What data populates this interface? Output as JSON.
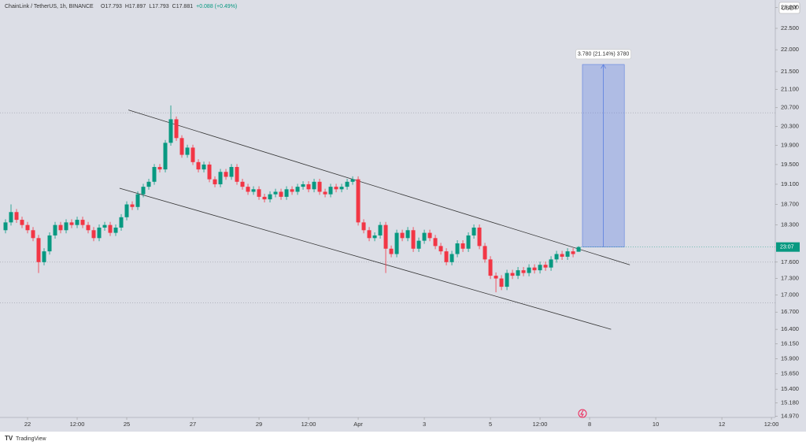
{
  "chart_data": {
    "type": "candlestick",
    "header": {
      "symbol": "ChainLink / TetherUS, 1h, BINANCE",
      "ohlc": [
        "O17.793",
        "H17.897",
        "L17.793",
        "C17.881",
        "+0.088 (+0.49%)"
      ]
    },
    "currency": "USDT",
    "price_tag": "23:07",
    "brand": "TradingView",
    "colors": {
      "up": "#089981",
      "down": "#f23645"
    },
    "log_scale": true,
    "grid": false,
    "ylim": [
      14.95,
      23.18
    ],
    "yticks": [
      {
        "value": 23,
        "label": "23.000"
      },
      {
        "value": 22.5,
        "label": "22.500"
      },
      {
        "value": 22,
        "label": "22.000"
      },
      {
        "value": 21.5,
        "label": "21.500"
      },
      {
        "value": 21.1,
        "label": "21.100"
      },
      {
        "value": 20.7,
        "label": "20.700"
      },
      {
        "value": 20.3,
        "label": "20.300"
      },
      {
        "value": 19.9,
        "label": "19.900"
      },
      {
        "value": 19.5,
        "label": "19.500"
      },
      {
        "value": 19.1,
        "label": "19.100"
      },
      {
        "value": 18.7,
        "label": "18.700"
      },
      {
        "value": 18.3,
        "label": "18.300"
      },
      {
        "value": 17.6,
        "label": "17.600"
      },
      {
        "value": 17.3,
        "label": "17.300"
      },
      {
        "value": 17,
        "label": "17.000"
      },
      {
        "value": 16.7,
        "label": "16.700"
      },
      {
        "value": 16.4,
        "label": "16.400"
      },
      {
        "value": 16.15,
        "label": "16.150"
      },
      {
        "value": 15.9,
        "label": "15.900"
      },
      {
        "value": 15.65,
        "label": "15.650"
      },
      {
        "value": 15.4,
        "label": "15.400"
      },
      {
        "value": 15.18,
        "label": "15.180"
      },
      {
        "value": 14.97,
        "label": "14.970"
      }
    ],
    "xlim": [
      -1,
      139.7
    ],
    "xticks": [
      {
        "value": 4,
        "label": "22"
      },
      {
        "value": 13,
        "label": "12:00"
      },
      {
        "value": 22,
        "label": "25"
      },
      {
        "value": 34,
        "label": "27"
      },
      {
        "value": 46,
        "label": "29"
      },
      {
        "value": 55,
        "label": "12:00"
      },
      {
        "value": 64,
        "label": "Apr"
      },
      {
        "value": 76,
        "label": "3"
      },
      {
        "value": 88,
        "label": "5"
      },
      {
        "value": 97,
        "label": "12:00"
      },
      {
        "value": 106,
        "label": "8"
      },
      {
        "value": 118,
        "label": "10"
      },
      {
        "value": 130,
        "label": "12"
      },
      {
        "value": 139,
        "label": "12:00"
      }
    ],
    "open": [
      18.2,
      18.35,
      18.55,
      18.4,
      18.3,
      18.2,
      18.05,
      17.6,
      17.8,
      18.1,
      18.3,
      18.2,
      18.35,
      18.3,
      18.4,
      18.3,
      18.2,
      18.05,
      18.25,
      18.3,
      18.15,
      18.25,
      18.45,
      18.7,
      18.65,
      18.9,
      19.05,
      19.15,
      19.45,
      19.4,
      19.95,
      20.45,
      20.05,
      19.7,
      19.85,
      19.55,
      19.4,
      19.5,
      19.2,
      19.1,
      19.35,
      19.25,
      19.45,
      19.15,
      19.05,
      18.95,
      19.0,
      18.85,
      18.8,
      18.9,
      18.95,
      18.85,
      19.0,
      18.95,
      19.05,
      19.1,
      19.0,
      19.15,
      18.95,
      18.9,
      19.05,
      19.0,
      19.05,
      19.15,
      19.2,
      18.35,
      18.2,
      18.05,
      18.1,
      18.3,
      17.85,
      17.75,
      18.15,
      18.05,
      18.2,
      17.85,
      18.0,
      18.15,
      18.05,
      17.9,
      17.8,
      17.6,
      17.75,
      17.95,
      17.85,
      18.1,
      18.25,
      17.9,
      17.65,
      17.35,
      17.3,
      17.15,
      17.4,
      17.35,
      17.45,
      17.4,
      17.5,
      17.45,
      17.55,
      17.5,
      17.65,
      17.75,
      17.7,
      17.8,
      17.793
    ],
    "high": [
      18.41,
      18.7,
      18.61,
      18.46,
      18.36,
      18.26,
      18.11,
      17.86,
      18.16,
      18.36,
      18.36,
      18.41,
      18.41,
      18.46,
      18.46,
      18.36,
      18.26,
      18.31,
      18.36,
      18.36,
      18.31,
      18.51,
      18.76,
      18.76,
      18.96,
      19.11,
      19.21,
      19.51,
      19.51,
      20.01,
      20.75,
      20.51,
      20.11,
      19.91,
      19.91,
      19.61,
      19.56,
      19.56,
      19.26,
      19.41,
      19.41,
      19.51,
      19.51,
      19.21,
      19.11,
      19.06,
      19.06,
      18.91,
      18.96,
      19.01,
      19.01,
      19.06,
      19.06,
      19.11,
      19.16,
      19.16,
      19.21,
      19.21,
      19.01,
      19.11,
      19.11,
      19.11,
      19.21,
      19.26,
      19.26,
      18.41,
      18.26,
      18.16,
      18.36,
      18.36,
      17.91,
      18.21,
      18.21,
      18.26,
      18.26,
      18.06,
      18.21,
      18.21,
      18.11,
      17.96,
      17.86,
      17.81,
      18.01,
      18.01,
      18.16,
      18.31,
      18.31,
      17.96,
      17.71,
      17.41,
      17.36,
      17.46,
      17.46,
      17.51,
      17.51,
      17.56,
      17.56,
      17.61,
      17.61,
      17.71,
      17.81,
      17.81,
      17.86,
      17.86,
      17.897
    ],
    "low": [
      18.14,
      18.29,
      18.34,
      18.24,
      18.14,
      17.99,
      17.4,
      17.54,
      17.74,
      18.04,
      18.14,
      18.14,
      18.24,
      18.24,
      18.24,
      18.14,
      17.99,
      17.99,
      18.19,
      18.09,
      18.09,
      18.19,
      18.39,
      18.59,
      18.59,
      18.84,
      18.99,
      19.09,
      19.34,
      19.34,
      19.89,
      19.99,
      19.64,
      19.64,
      19.49,
      19.34,
      19.34,
      19.14,
      19.04,
      19.04,
      19.19,
      19.19,
      19.09,
      18.99,
      18.89,
      18.89,
      18.79,
      18.74,
      18.74,
      18.84,
      18.79,
      18.79,
      18.89,
      18.89,
      18.99,
      18.94,
      18.94,
      18.89,
      18.84,
      18.84,
      18.94,
      18.94,
      18.99,
      19.09,
      18.29,
      18.14,
      17.99,
      17.99,
      18.04,
      17.4,
      17.69,
      17.69,
      17.99,
      17.99,
      17.79,
      17.79,
      17.94,
      17.99,
      17.84,
      17.74,
      17.54,
      17.54,
      17.69,
      17.79,
      17.79,
      18.04,
      17.84,
      17.59,
      17.29,
      17.05,
      17.09,
      17.09,
      17.29,
      17.29,
      17.34,
      17.34,
      17.39,
      17.39,
      17.44,
      17.44,
      17.59,
      17.64,
      17.64,
      17.69,
      17.793
    ],
    "close": [
      18.35,
      18.55,
      18.4,
      18.3,
      18.2,
      18.05,
      17.6,
      17.8,
      18.1,
      18.3,
      18.2,
      18.35,
      18.3,
      18.4,
      18.3,
      18.2,
      18.05,
      18.25,
      18.3,
      18.15,
      18.25,
      18.45,
      18.7,
      18.65,
      18.9,
      19.05,
      19.15,
      19.45,
      19.4,
      19.95,
      20.45,
      20.05,
      19.7,
      19.85,
      19.55,
      19.4,
      19.5,
      19.2,
      19.1,
      19.35,
      19.25,
      19.45,
      19.15,
      19.05,
      18.95,
      19.0,
      18.85,
      18.8,
      18.9,
      18.95,
      18.85,
      19.0,
      18.95,
      19.05,
      19.1,
      19.0,
      19.15,
      18.95,
      18.9,
      19.05,
      19.0,
      19.05,
      19.15,
      19.2,
      18.35,
      18.2,
      18.05,
      18.1,
      18.3,
      17.85,
      17.75,
      18.15,
      18.05,
      18.2,
      17.85,
      18.0,
      18.15,
      18.05,
      17.9,
      17.8,
      17.6,
      17.75,
      17.95,
      17.85,
      18.1,
      18.25,
      17.9,
      17.65,
      17.35,
      17.3,
      17.15,
      17.4,
      17.35,
      17.45,
      17.4,
      17.5,
      17.45,
      17.55,
      17.5,
      17.65,
      17.75,
      17.7,
      17.8,
      17.75,
      17.881
    ],
    "trendlines": [
      {
        "x": [
          22.3,
          113.3
        ],
        "y": [
          20.65,
          17.55
        ]
      },
      {
        "x": [
          20.7,
          109.9
        ],
        "y": [
          19.02,
          16.4
        ]
      }
    ],
    "hlines": [
      20.59,
      17.6,
      16.86
    ],
    "measure": {
      "label": "3.780 (21.14%) 3780",
      "x": [
        104.7,
        112.3
      ],
      "y": [
        17.881,
        21.661
      ],
      "color": "#5b7fe0"
    }
  }
}
